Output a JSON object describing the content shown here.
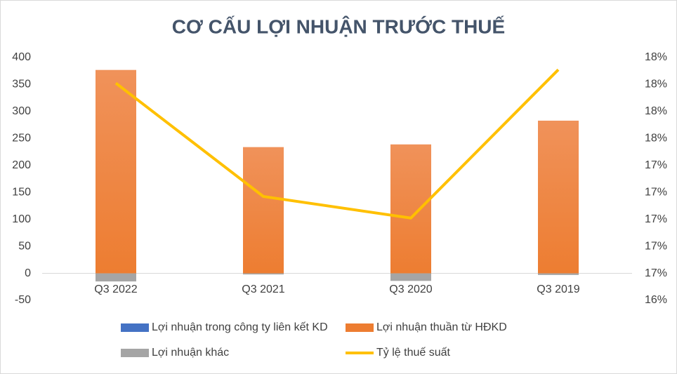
{
  "chart_data": {
    "type": "bar",
    "title": "CƠ CẤU LỢI NHUẬN TRƯỚC THUẾ",
    "categories": [
      "Q3 2022",
      "Q3 2021",
      "Q3 2020",
      "Q3 2019"
    ],
    "series": [
      {
        "name": "Lợi nhuận trong công ty liên kết KD",
        "color": "#4472c4",
        "type": "bar",
        "values": [
          0,
          0,
          0,
          0
        ]
      },
      {
        "name": "Lợi nhuận thuần từ HĐKD",
        "color": "#ed7d31",
        "type": "bar",
        "values": [
          377,
          234,
          239,
          283
        ]
      },
      {
        "name": "Lợi nhuận khác",
        "color": "#a5a5a5",
        "type": "bar",
        "values": [
          -15,
          -2,
          -14,
          -3
        ]
      },
      {
        "name": "Tỷ lệ thuế suất",
        "color": "#ffc000",
        "type": "line",
        "axis": "y2",
        "values": [
          18.01,
          17.17,
          17.01,
          18.11
        ]
      }
    ],
    "ylim": [
      -50,
      400
    ],
    "yticks": [
      -50,
      0,
      50,
      100,
      150,
      200,
      250,
      300,
      350,
      400
    ],
    "y2lim": [
      16.4,
      18.2
    ],
    "y2ticks": [
      {
        "value": 16.4,
        "label": "16%"
      },
      {
        "value": 16.6,
        "label": "17%"
      },
      {
        "value": 16.8,
        "label": "17%"
      },
      {
        "value": 17.0,
        "label": "17%"
      },
      {
        "value": 17.2,
        "label": "17%"
      },
      {
        "value": 17.4,
        "label": "17%"
      },
      {
        "value": 17.6,
        "label": "18%"
      },
      {
        "value": 17.8,
        "label": "18%"
      },
      {
        "value": 18.0,
        "label": "18%"
      },
      {
        "value": 18.2,
        "label": "18%"
      }
    ],
    "stacked": true,
    "grid": false
  }
}
